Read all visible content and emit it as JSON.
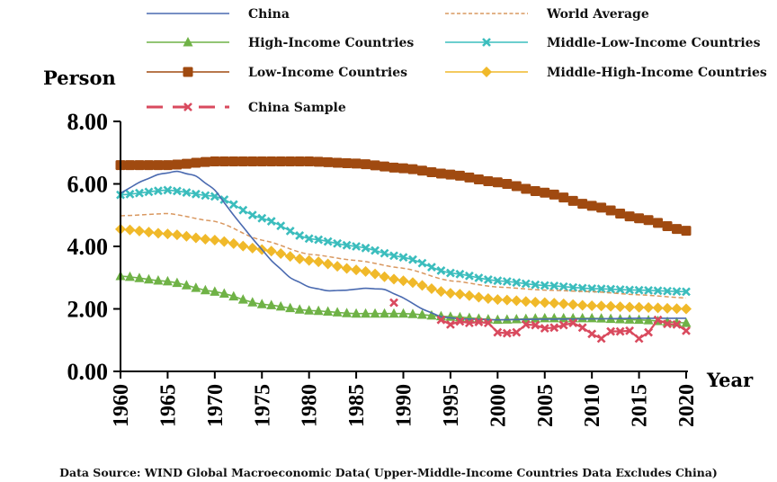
{
  "chart_data": {
    "type": "line",
    "title": "",
    "ylabel": "Person",
    "xlabel": "Year",
    "ylim": [
      0,
      8
    ],
    "xlim": [
      1960,
      2020
    ],
    "y_ticks": [
      "0.00",
      "2.00",
      "4.00",
      "6.00",
      "8.00"
    ],
    "y_tick_values": [
      0,
      2,
      4,
      6,
      8
    ],
    "x_ticks": [
      "1960",
      "1965",
      "1970",
      "1975",
      "1980",
      "1985",
      "1990",
      "1995",
      "2000",
      "2005",
      "2010",
      "2015",
      "2020"
    ],
    "x_tick_values": [
      1960,
      1965,
      1970,
      1975,
      1980,
      1985,
      1990,
      1995,
      2000,
      2005,
      2010,
      2015,
      2020
    ],
    "grid": false,
    "legend_position": "top",
    "source_note": "Data Source: WIND Global Macroeconomic Data( Upper-Middle-Income Countries Data Excludes China)",
    "series": [
      {
        "name": "China",
        "color": "#4a6ab0",
        "style": "solid",
        "marker": "none",
        "x": [
          1960,
          1962,
          1964,
          1966,
          1968,
          1970,
          1972,
          1974,
          1976,
          1978,
          1980,
          1982,
          1984,
          1986,
          1988,
          1990,
          1992,
          1994,
          1996,
          2000,
          2005,
          2010,
          2015,
          2020
        ],
        "values": [
          5.7,
          6.05,
          6.3,
          6.4,
          6.25,
          5.8,
          5.0,
          4.25,
          3.55,
          3.0,
          2.7,
          2.58,
          2.6,
          2.66,
          2.62,
          2.35,
          2.0,
          1.75,
          1.68,
          1.65,
          1.67,
          1.68,
          1.7,
          1.7
        ]
      },
      {
        "name": "World Average",
        "color": "#d99860",
        "style": "dashed",
        "marker": "none",
        "x": [
          1960,
          1965,
          1970,
          1975,
          1980,
          1985,
          1990,
          1995,
          2000,
          2005,
          2010,
          2015,
          2020
        ],
        "values": [
          4.98,
          5.05,
          4.8,
          4.2,
          3.75,
          3.55,
          3.3,
          2.9,
          2.7,
          2.6,
          2.55,
          2.45,
          2.35
        ]
      },
      {
        "name": "High-Income Countries",
        "color": "#6fb246",
        "style": "solid",
        "marker": "triangle",
        "x": [
          1960,
          1965,
          1970,
          1975,
          1980,
          1985,
          1990,
          1995,
          2000,
          2005,
          2010,
          2015,
          2020
        ],
        "values": [
          3.05,
          2.88,
          2.55,
          2.15,
          1.95,
          1.85,
          1.85,
          1.75,
          1.65,
          1.7,
          1.7,
          1.65,
          1.55
        ]
      },
      {
        "name": "Middle-Low-Income Countries",
        "color": "#3bbdbd",
        "style": "solid",
        "marker": "x",
        "x": [
          1960,
          1965,
          1970,
          1975,
          1980,
          1985,
          1990,
          1995,
          2000,
          2005,
          2010,
          2015,
          2020
        ],
        "values": [
          5.65,
          5.8,
          5.6,
          4.9,
          4.25,
          4.0,
          3.65,
          3.15,
          2.9,
          2.75,
          2.65,
          2.6,
          2.55
        ]
      },
      {
        "name": "Low-Income Countries",
        "color": "#a04a10",
        "style": "solid",
        "marker": "square",
        "x": [
          1960,
          1965,
          1970,
          1975,
          1980,
          1985,
          1990,
          1995,
          2000,
          2005,
          2010,
          2015,
          2020
        ],
        "values": [
          6.6,
          6.6,
          6.72,
          6.72,
          6.72,
          6.65,
          6.5,
          6.3,
          6.05,
          5.72,
          5.3,
          4.9,
          4.5
        ]
      },
      {
        "name": "Middle-High-Income Countries",
        "color": "#f0b92a",
        "style": "solid",
        "marker": "diamond",
        "x": [
          1960,
          1965,
          1970,
          1975,
          1980,
          1985,
          1990,
          1995,
          2000,
          2005,
          2010,
          2015,
          2020
        ],
        "values": [
          4.55,
          4.4,
          4.2,
          3.9,
          3.55,
          3.25,
          2.9,
          2.5,
          2.3,
          2.2,
          2.1,
          2.05,
          2.0
        ]
      },
      {
        "name": "China Sample",
        "color": "#d94a5e",
        "style": "dashed",
        "marker": "x",
        "x": [
          1989,
          1994,
          1995,
          1996,
          1997,
          1998,
          1999,
          2000,
          2001,
          2002,
          2003,
          2004,
          2005,
          2006,
          2007,
          2008,
          2009,
          2010,
          2011,
          2012,
          2013,
          2014,
          2015,
          2016,
          2017,
          2018,
          2019,
          2020
        ],
        "values": [
          2.2,
          1.65,
          1.5,
          1.6,
          1.55,
          1.58,
          1.55,
          1.25,
          1.22,
          1.25,
          1.5,
          1.48,
          1.38,
          1.4,
          1.48,
          1.55,
          1.4,
          1.2,
          1.05,
          1.28,
          1.28,
          1.3,
          1.05,
          1.25,
          1.65,
          1.52,
          1.5,
          1.3
        ],
        "segment_break_after_index": 0
      }
    ]
  }
}
